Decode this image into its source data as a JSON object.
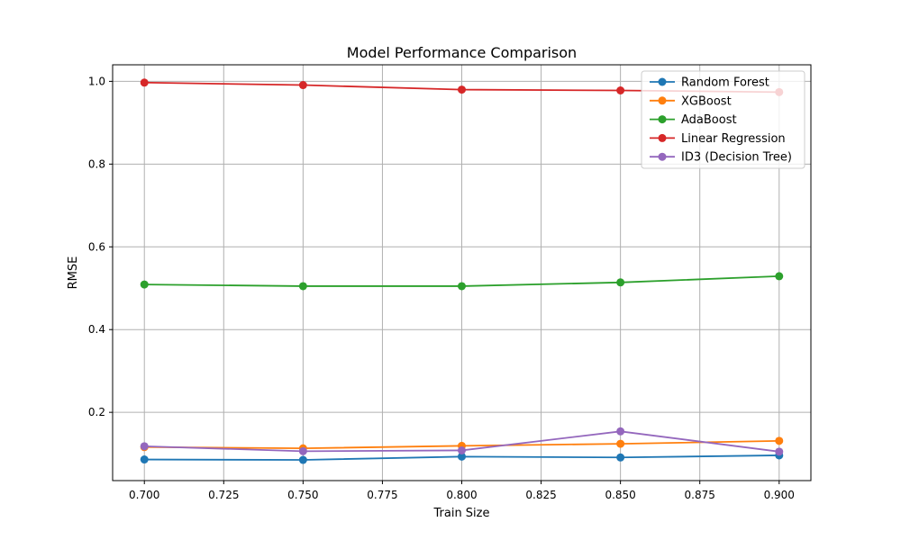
{
  "chart_data": {
    "type": "line",
    "title": "Model Performance Comparison",
    "xlabel": "Train Size",
    "ylabel": "RMSE",
    "x": [
      0.7,
      0.75,
      0.8,
      0.85,
      0.9
    ],
    "xlim": [
      0.69,
      0.91
    ],
    "ylim": [
      0.035,
      1.04
    ],
    "xticks": [
      0.7,
      0.725,
      0.75,
      0.775,
      0.8,
      0.825,
      0.85,
      0.875,
      0.9
    ],
    "xtick_labels": [
      "0.700",
      "0.725",
      "0.750",
      "0.775",
      "0.800",
      "0.825",
      "0.850",
      "0.875",
      "0.900"
    ],
    "yticks": [
      0.2,
      0.4,
      0.6,
      0.8,
      1.0
    ],
    "ytick_labels": [
      "0.2",
      "0.4",
      "0.6",
      "0.8",
      "1.0"
    ],
    "grid": true,
    "legend_position": "top-right",
    "series": [
      {
        "name": "Random Forest",
        "color": "#1f77b4",
        "values": [
          0.086,
          0.085,
          0.093,
          0.091,
          0.096
        ]
      },
      {
        "name": "XGBoost",
        "color": "#ff7f0e",
        "values": [
          0.116,
          0.113,
          0.119,
          0.124,
          0.131
        ]
      },
      {
        "name": "AdaBoost",
        "color": "#2ca02c",
        "values": [
          0.509,
          0.505,
          0.505,
          0.514,
          0.529
        ]
      },
      {
        "name": "Linear Regression",
        "color": "#d62728",
        "values": [
          0.997,
          0.991,
          0.98,
          0.978,
          0.974
        ]
      },
      {
        "name": "ID3 (Decision Tree)",
        "color": "#9467bd",
        "values": [
          0.118,
          0.106,
          0.108,
          0.154,
          0.105
        ]
      }
    ]
  }
}
